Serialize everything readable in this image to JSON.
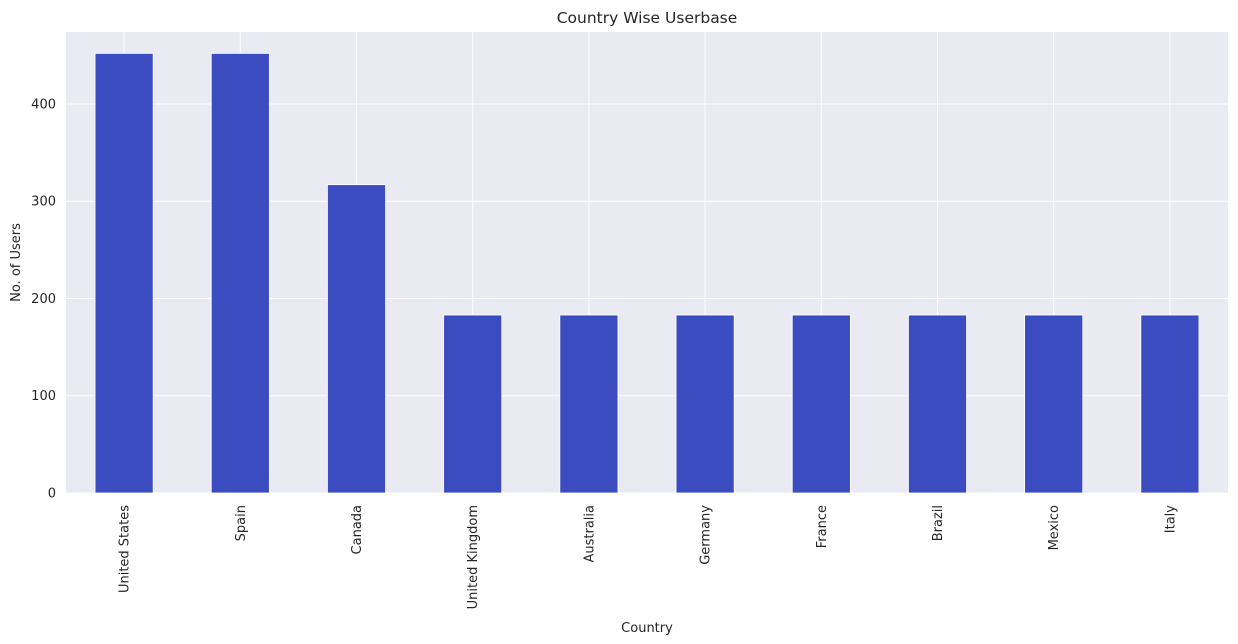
{
  "chart_data": {
    "type": "bar",
    "title": "Country Wise Userbase",
    "xlabel": "Country",
    "ylabel": "No. of Users",
    "categories": [
      "United States",
      "Spain",
      "Canada",
      "United Kingdom",
      "Australia",
      "Germany",
      "France",
      "Brazil",
      "Mexico",
      "Italy"
    ],
    "values": [
      452,
      452,
      317,
      183,
      183,
      183,
      183,
      183,
      183,
      183
    ],
    "ylim": [
      0,
      474
    ],
    "yticks": [
      0,
      100,
      200,
      300,
      400
    ],
    "grid": true,
    "bar_color": "#3b4cc0",
    "background_color": "#eaeaf2",
    "grid_color": "#ffffff"
  }
}
